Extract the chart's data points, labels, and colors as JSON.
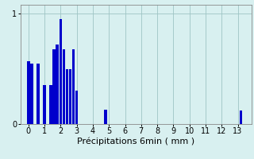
{
  "title": "",
  "xlabel": "Précipitations 6min ( mm )",
  "ylabel": "",
  "background_color": "#d8f0f0",
  "bar_color": "#0000cc",
  "xlim": [
    -0.5,
    13.85
  ],
  "ylim": [
    0,
    1.08
  ],
  "yticks": [
    0,
    1
  ],
  "xticks": [
    0,
    1,
    2,
    3,
    4,
    5,
    6,
    7,
    8,
    9,
    10,
    11,
    12,
    13
  ],
  "grid_color": "#9ec4c4",
  "bar_positions": [
    0.0,
    0.2,
    0.4,
    0.6,
    0.8,
    1.0,
    1.2,
    1.4,
    1.6,
    1.8,
    2.0,
    2.2,
    2.4,
    2.6,
    2.8,
    3.0,
    4.8,
    13.2
  ],
  "bar_heights": [
    0.57,
    0.55,
    0.0,
    0.55,
    0.0,
    0.35,
    0.0,
    0.35,
    0.68,
    0.72,
    0.95,
    0.68,
    0.5,
    0.5,
    0.68,
    0.3,
    0.13,
    0.12
  ],
  "bar_width": 0.18,
  "xlabel_fontsize": 8,
  "tick_fontsize": 7
}
